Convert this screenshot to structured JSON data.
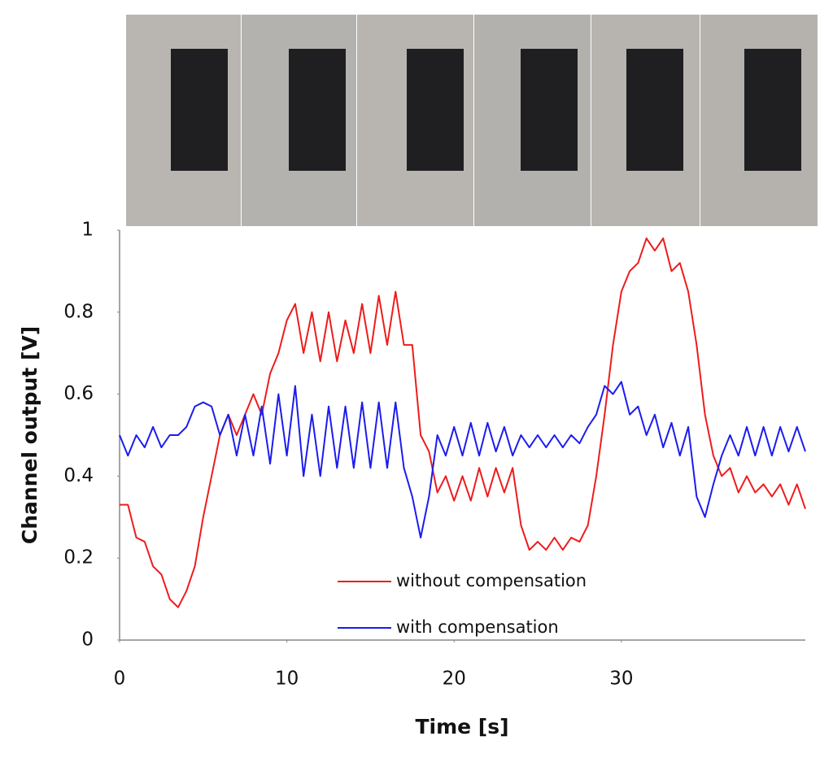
{
  "chart_data": {
    "type": "line",
    "xlabel": "Time [s]",
    "ylabel": "Channel output [V]",
    "x": [
      0,
      0.5,
      1,
      1.5,
      2,
      2.5,
      3,
      3.5,
      4,
      4.5,
      5,
      5.5,
      6,
      6.5,
      7,
      7.5,
      8,
      8.5,
      9,
      9.5,
      10,
      10.5,
      11,
      11.5,
      12,
      12.5,
      13,
      13.5,
      14,
      14.5,
      15,
      15.5,
      16,
      16.5,
      17,
      17.5,
      18,
      18.5,
      19,
      19.5,
      20,
      20.5,
      21,
      21.5,
      22,
      22.5,
      23,
      23.5,
      24,
      24.5,
      25,
      25.5,
      26,
      26.5,
      27,
      27.5,
      28,
      28.5,
      29,
      29.5,
      30,
      30.5,
      31,
      31.5,
      32,
      32.5,
      33,
      33.5,
      34,
      34.5,
      35,
      35.5,
      36,
      36.5,
      37,
      37.5,
      38,
      38.5,
      39,
      39.5,
      40,
      40.5,
      41
    ],
    "series": [
      {
        "name": "without compensation",
        "color": "#ee1c1c",
        "values": [
          0.33,
          0.33,
          0.25,
          0.24,
          0.18,
          0.16,
          0.1,
          0.08,
          0.12,
          0.18,
          0.3,
          0.4,
          0.5,
          0.55,
          0.5,
          0.55,
          0.6,
          0.55,
          0.65,
          0.7,
          0.78,
          0.82,
          0.7,
          0.8,
          0.68,
          0.8,
          0.68,
          0.78,
          0.7,
          0.82,
          0.7,
          0.84,
          0.72,
          0.85,
          0.72,
          0.72,
          0.5,
          0.46,
          0.36,
          0.4,
          0.34,
          0.4,
          0.34,
          0.42,
          0.35,
          0.42,
          0.36,
          0.42,
          0.28,
          0.22,
          0.24,
          0.22,
          0.25,
          0.22,
          0.25,
          0.24,
          0.28,
          0.4,
          0.55,
          0.72,
          0.85,
          0.9,
          0.92,
          0.98,
          0.95,
          0.98,
          0.9,
          0.92,
          0.85,
          0.72,
          0.55,
          0.45,
          0.4,
          0.42,
          0.36,
          0.4,
          0.36,
          0.38,
          0.35,
          0.38,
          0.33,
          0.38,
          0.32
        ]
      },
      {
        "name": "with compensation",
        "color": "#1c1cee",
        "values": [
          0.5,
          0.45,
          0.5,
          0.47,
          0.52,
          0.47,
          0.5,
          0.5,
          0.52,
          0.57,
          0.58,
          0.57,
          0.5,
          0.55,
          0.45,
          0.55,
          0.45,
          0.57,
          0.43,
          0.6,
          0.45,
          0.62,
          0.4,
          0.55,
          0.4,
          0.57,
          0.42,
          0.57,
          0.42,
          0.58,
          0.42,
          0.58,
          0.42,
          0.58,
          0.42,
          0.35,
          0.25,
          0.35,
          0.5,
          0.45,
          0.52,
          0.45,
          0.53,
          0.45,
          0.53,
          0.46,
          0.52,
          0.45,
          0.5,
          0.47,
          0.5,
          0.47,
          0.5,
          0.47,
          0.5,
          0.48,
          0.52,
          0.55,
          0.62,
          0.6,
          0.63,
          0.55,
          0.57,
          0.5,
          0.55,
          0.47,
          0.53,
          0.45,
          0.52,
          0.35,
          0.3,
          0.38,
          0.45,
          0.5,
          0.45,
          0.52,
          0.45,
          0.52,
          0.45,
          0.52,
          0.46,
          0.52,
          0.46
        ]
      }
    ],
    "xlim": [
      0,
      41
    ],
    "xticks": [
      0,
      10,
      20,
      30
    ],
    "ylim": [
      0,
      1
    ],
    "yticks": [
      0,
      0.2,
      0.4,
      0.6,
      0.8,
      1
    ],
    "grid": false,
    "legend": "lower center"
  }
}
